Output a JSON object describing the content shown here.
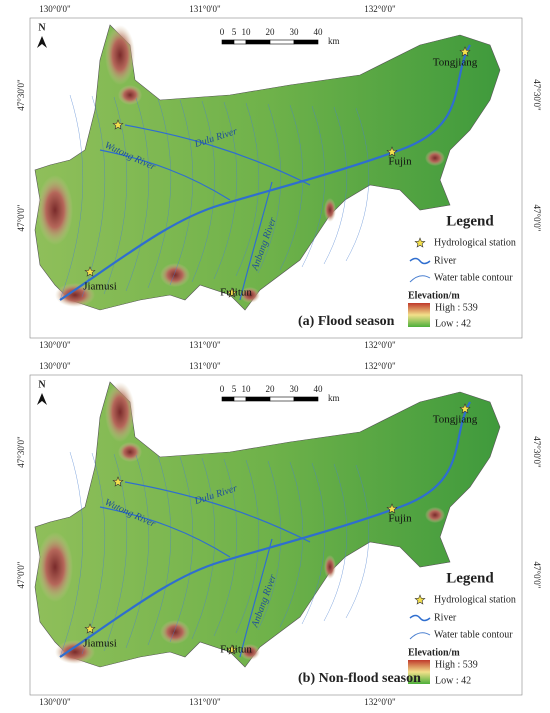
{
  "panels": [
    {
      "caption": "(a) Flood season",
      "longitude_labels": [
        "130°0'0\"",
        "131°0'0\"",
        "132°0'0\""
      ],
      "latitude_labels": [
        "47°30'0\"",
        "47°0'0\""
      ],
      "north": "N",
      "scale_labels": [
        0,
        5,
        10,
        20,
        30,
        40
      ],
      "scale_unit": "km",
      "places": [
        "Tongjiang",
        "Fujin",
        "Jiamusi",
        "Fulitun"
      ],
      "rivers": [
        "Dulu River",
        "Wutong River",
        "Anbang River"
      ],
      "legend": {
        "title": "Legend",
        "items": [
          "Hydrological station",
          "River",
          "Water table contour"
        ],
        "elevation_title": "Elevation/m",
        "high": "High : 539",
        "low": "Low : 42"
      }
    },
    {
      "caption": "(b) Non-flood season",
      "longitude_labels": [
        "130°0'0\"",
        "131°0'0\"",
        "132°0'0\""
      ],
      "latitude_labels": [
        "47°30'0\"",
        "47°0'0\""
      ],
      "north": "N",
      "scale_labels": [
        0,
        5,
        10,
        20,
        30,
        40
      ],
      "scale_unit": "km",
      "places": [
        "Tongjiang",
        "Fujin",
        "Jiamusi",
        "Fulitun"
      ],
      "rivers": [
        "Dulu River",
        "Wutong River",
        "Anbang River"
      ],
      "legend": {
        "title": "Legend",
        "items": [
          "Hydrological station",
          "River",
          "Water table contour"
        ],
        "elevation_title": "Elevation/m",
        "high": "High : 539",
        "low": "Low : 42"
      }
    }
  ]
}
